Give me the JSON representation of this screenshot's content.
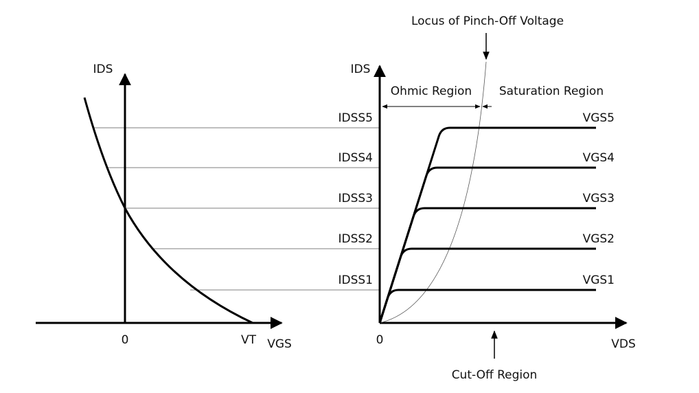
{
  "left_graph": {
    "y_label": "IDS",
    "x_label": "VGS",
    "origin_label": "0",
    "threshold_label": "VT"
  },
  "right_graph": {
    "y_label": "IDS",
    "x_label": "VDS",
    "origin_label": "0",
    "locus_label": "Locus of Pinch-Off Voltage",
    "ohmic_label": "Ohmic Region",
    "saturation_label": "Saturation Region",
    "cutoff_label": "Cut-Off Region",
    "levels": [
      {
        "idss": "IDSS5",
        "vgs": "VGS5"
      },
      {
        "idss": "IDSS4",
        "vgs": "VGS4"
      },
      {
        "idss": "IDSS3",
        "vgs": "VGS3"
      },
      {
        "idss": "IDSS2",
        "vgs": "VGS2"
      },
      {
        "idss": "IDSS1",
        "vgs": "VGS1"
      }
    ]
  }
}
